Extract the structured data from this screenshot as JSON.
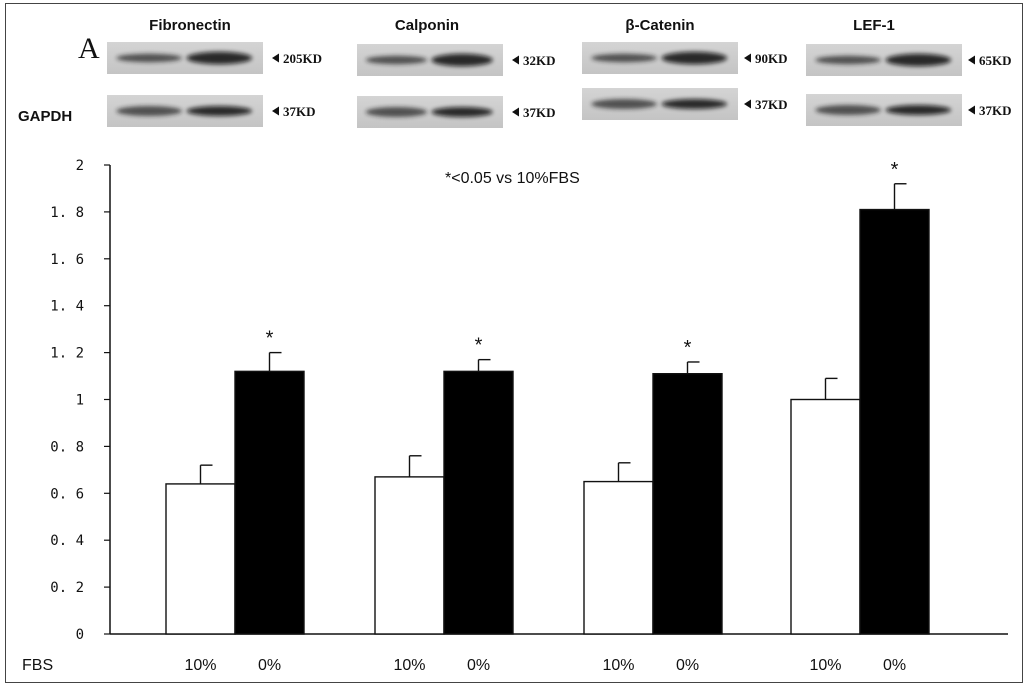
{
  "panel_letter": "A",
  "blots": [
    {
      "protein": "Fibronectin",
      "protein_size": "205KD",
      "control": "GAPDH",
      "control_size": "37KD"
    },
    {
      "protein": "Calponin",
      "protein_size": "32KD",
      "control": "",
      "control_size": "37KD"
    },
    {
      "protein": "β-Catenin",
      "protein_size": "90KD",
      "control": "",
      "control_size": "37KD"
    },
    {
      "protein": "LEF-1",
      "protein_size": "65KD",
      "control": "",
      "control_size": "37KD"
    }
  ],
  "chart_data": {
    "type": "bar",
    "title": "",
    "annotation": "*<0.05 vs 10%FBS",
    "xlabel": "FBS",
    "ylabel": "",
    "ylim": [
      0,
      2
    ],
    "yticks": [
      0,
      0.2,
      0.4,
      0.6,
      0.8,
      1,
      1.2,
      1.4,
      1.6,
      1.8,
      2
    ],
    "ytick_labels": [
      "0",
      "0. 2",
      "0. 4",
      "0. 6",
      "0. 8",
      "1",
      "1. 2",
      "1. 4",
      "1. 6",
      "1. 8",
      "2"
    ],
    "groups": [
      "Fibronectin",
      "Calponin",
      "β-Catenin",
      "LEF-1"
    ],
    "series": [
      {
        "name": "10%",
        "fill": "#ffffff",
        "values": [
          0.64,
          0.67,
          0.65,
          1.0
        ],
        "errors": [
          0.08,
          0.09,
          0.08,
          0.09
        ],
        "significant": [
          false,
          false,
          false,
          false
        ]
      },
      {
        "name": "0%",
        "fill": "#000000",
        "values": [
          1.12,
          1.12,
          1.11,
          1.81
        ],
        "errors": [
          0.08,
          0.05,
          0.05,
          0.11
        ],
        "significant": [
          true,
          true,
          true,
          true
        ]
      }
    ],
    "significance_marker": "*",
    "grid": false,
    "legend": "none"
  }
}
